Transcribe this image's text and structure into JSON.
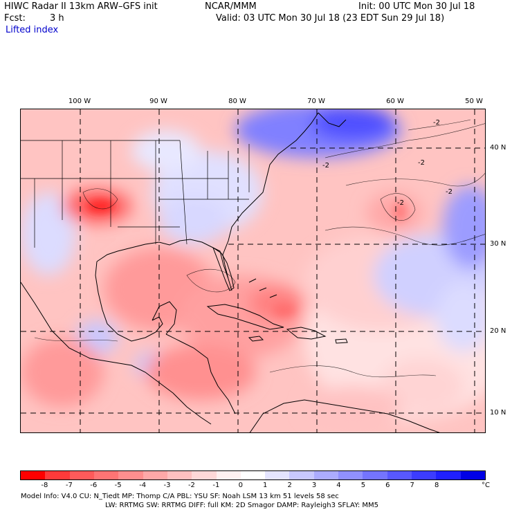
{
  "header": {
    "title": "HIWC Radar II 13km ARW–GFS init",
    "center": "NCAR/MMM",
    "init": "Init: 00 UTC Mon 30 Jul 18",
    "fcst_label": "Fcst:",
    "fcst_value": "3 h",
    "valid": "Valid: 03 UTC Mon 30 Jul 18 (23 EDT Sun 29 Jul 18)",
    "field": "Lifted index"
  },
  "map": {
    "lon_labels": [
      "100 W",
      "90 W",
      "80 W",
      "70 W",
      "60 W",
      "50 W"
    ],
    "lat_labels": [
      "40 N",
      "30 N",
      "20 N",
      "10 N"
    ],
    "contour_labels": [
      "-2",
      "-2",
      "-2",
      "-2",
      "-2"
    ]
  },
  "colorbar": {
    "colors": [
      "#ff0000",
      "#ff3a3a",
      "#ff5a5a",
      "#ff7474",
      "#ff8e8e",
      "#ffa8a8",
      "#ffc0c0",
      "#ffd8d8",
      "#fff0f0",
      "#ffffff",
      "#e4e4ff",
      "#c8c8ff",
      "#acacff",
      "#9090ff",
      "#7474ff",
      "#5858ff",
      "#3c3cff",
      "#2020ff",
      "#0000e6"
    ],
    "ticks": [
      "-8",
      "-7",
      "-6",
      "-5",
      "-4",
      "-3",
      "-2",
      "-1",
      "0",
      "1",
      "2",
      "3",
      "4",
      "5",
      "6",
      "7",
      "8"
    ],
    "unit": "°C"
  },
  "footer": {
    "line1": "Model Info: V4.0     CU: N_Tiedt  MP: Thomp C/A    PBL: YSU      SF: Noah LSM    13 km    51 levels   58 sec",
    "line2": "LW: RRTMG    SW: RRTMG  DIFF: full    KM: 2D Smagor DAMP: Rayleigh3  SFLAY: MM5"
  }
}
